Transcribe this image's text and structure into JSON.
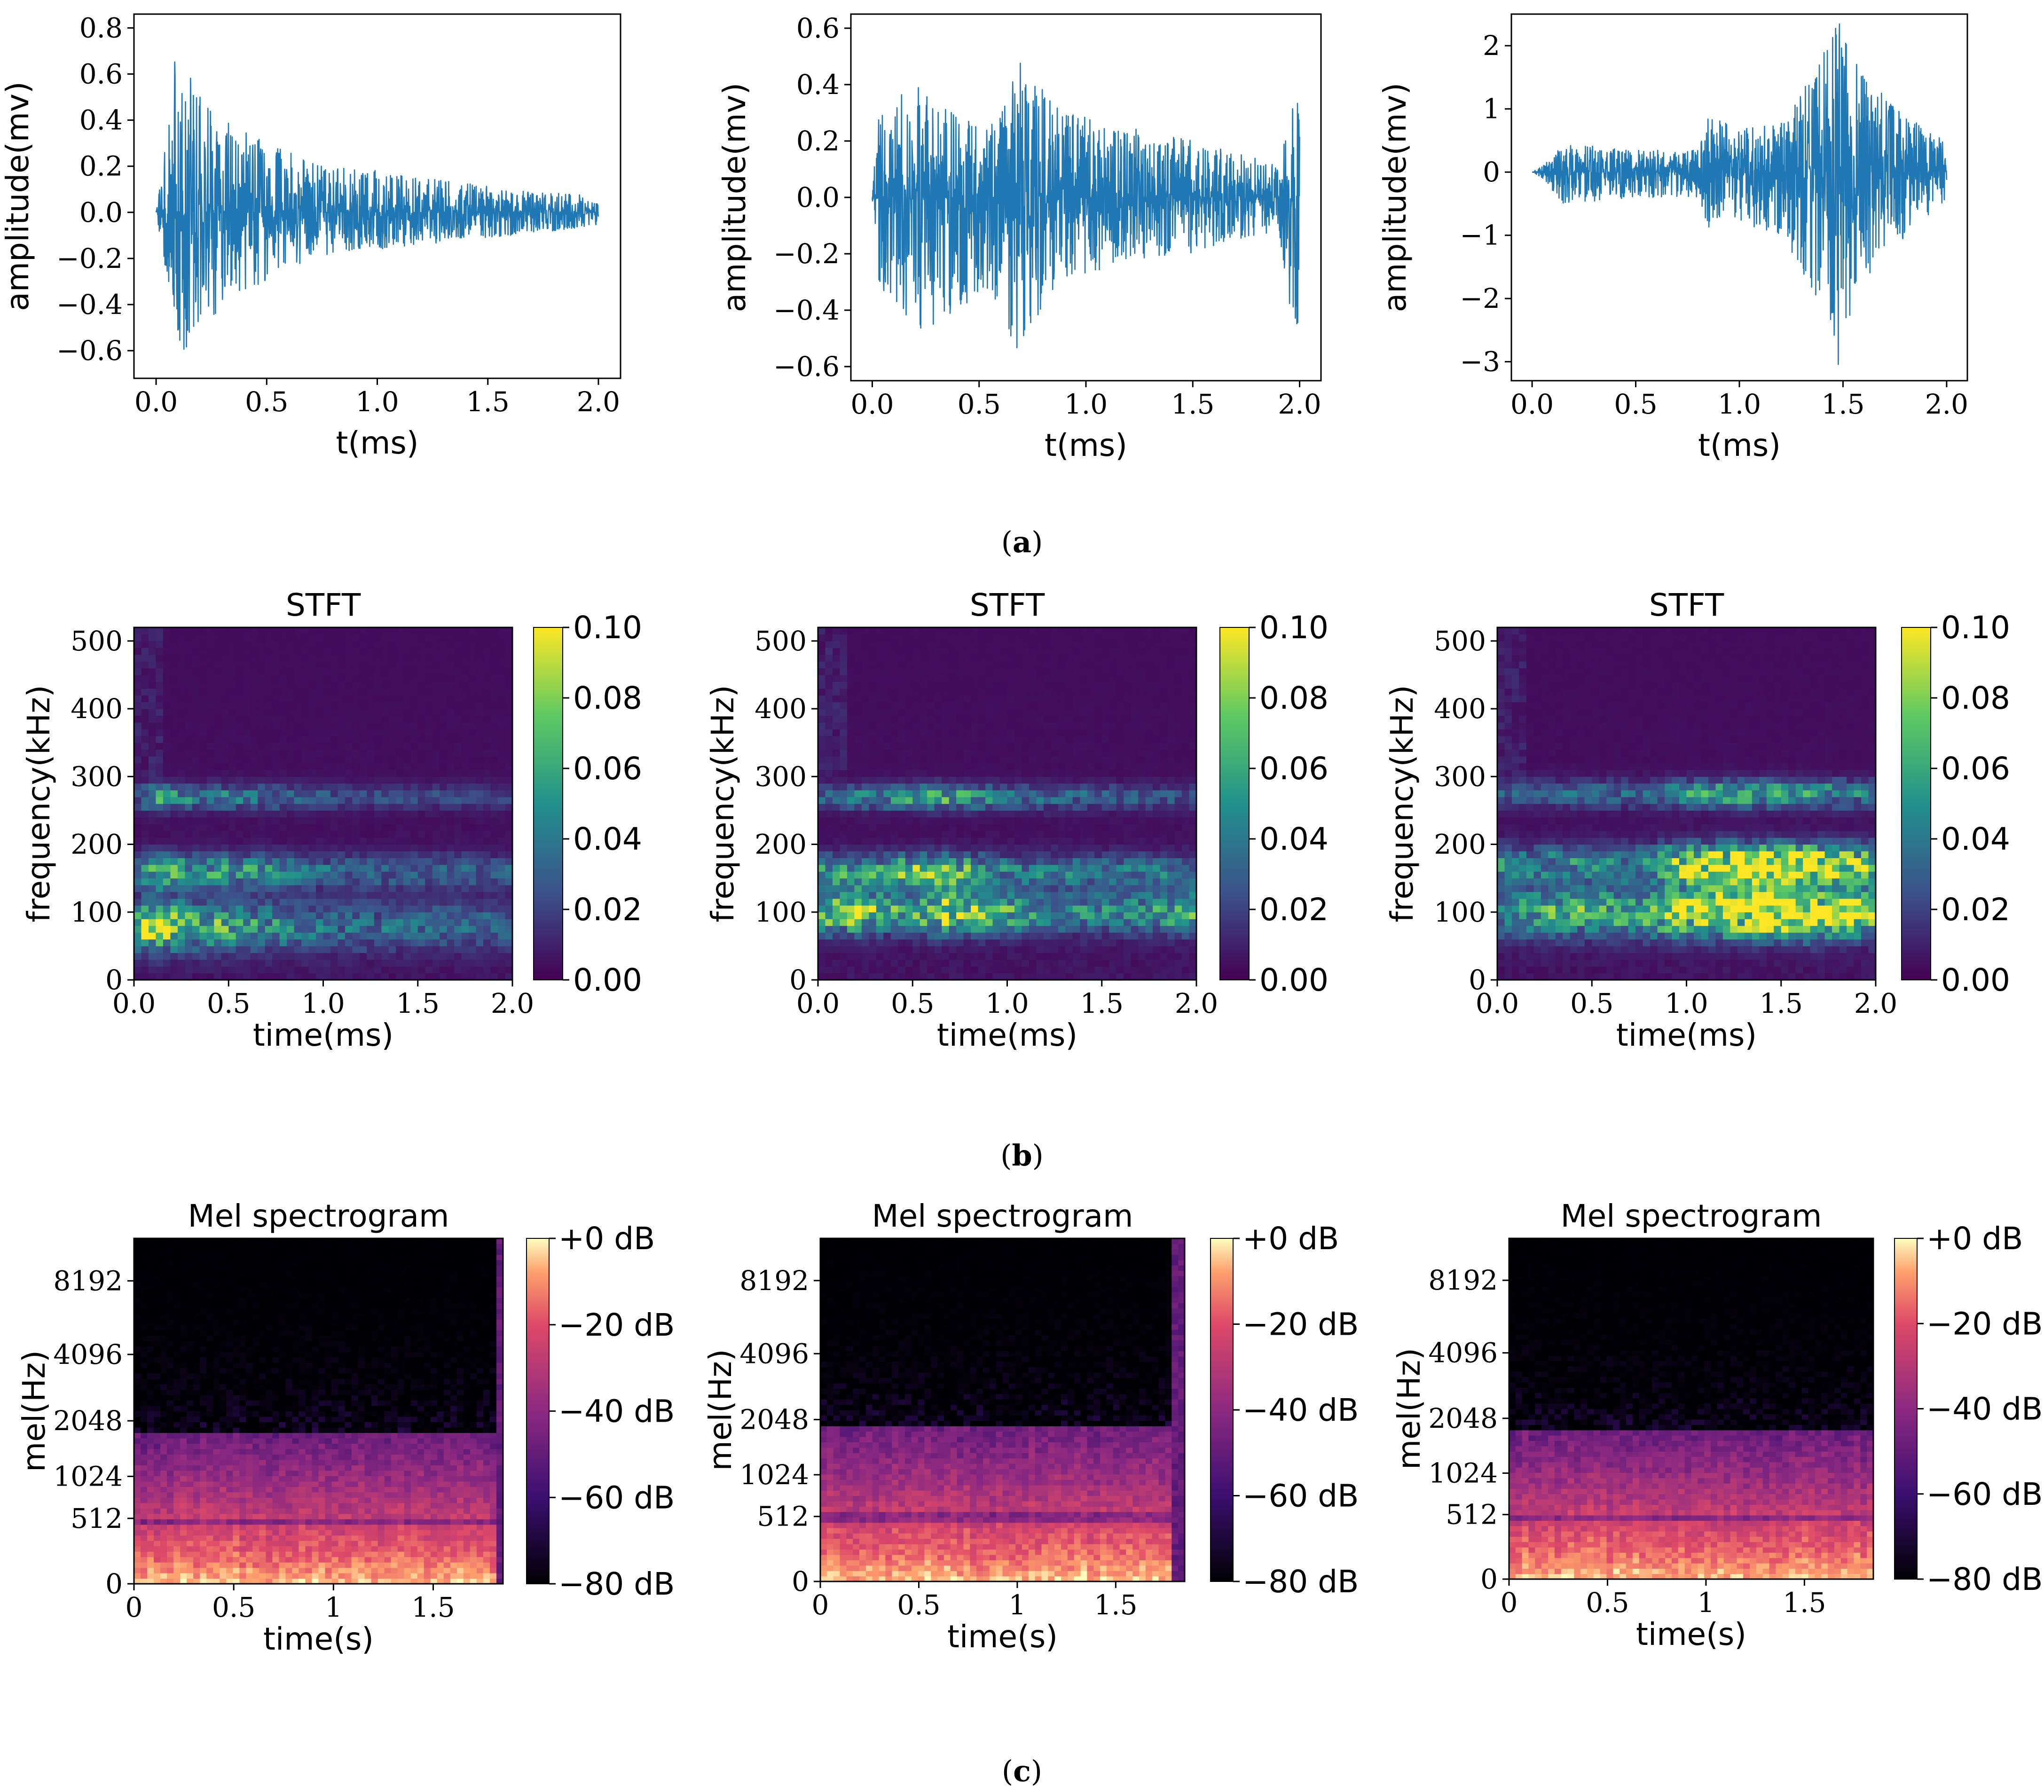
{
  "chart_data": [
    {
      "type": "line",
      "panel": "a1",
      "xlabel": "t(ms)",
      "ylabel": "amplitude(mv)",
      "xlim": [
        0,
        2.0
      ],
      "ylim": [
        -0.72,
        0.86
      ],
      "xticks": [
        0.0,
        0.5,
        1.0,
        1.5,
        2.0
      ],
      "yticks": [
        -0.6,
        -0.4,
        -0.2,
        0.0,
        0.2,
        0.4,
        0.6,
        0.8
      ],
      "color": "#1f77b4",
      "envelope": {
        "t": [
          0.0,
          0.05,
          0.1,
          0.15,
          0.2,
          0.3,
          0.5,
          0.7,
          1.0,
          1.3,
          1.6,
          2.0
        ],
        "pos": [
          0.0,
          0.35,
          0.8,
          0.6,
          0.5,
          0.4,
          0.3,
          0.22,
          0.18,
          0.14,
          0.1,
          0.07
        ],
        "neg": [
          0.0,
          -0.3,
          -0.6,
          -0.68,
          -0.5,
          -0.42,
          -0.3,
          -0.2,
          -0.16,
          -0.13,
          -0.1,
          -0.06
        ]
      }
    },
    {
      "type": "line",
      "panel": "a2",
      "xlabel": "t(ms)",
      "ylabel": "amplitude(mv)",
      "xlim": [
        0,
        2.0
      ],
      "ylim": [
        -0.65,
        0.65
      ],
      "xticks": [
        0.0,
        0.5,
        1.0,
        1.5,
        2.0
      ],
      "yticks": [
        -0.6,
        -0.4,
        -0.2,
        0.0,
        0.2,
        0.4,
        0.6
      ],
      "color": "#1f77b4",
      "envelope": {
        "t": [
          0.0,
          0.02,
          0.2,
          0.5,
          0.6,
          0.65,
          0.75,
          0.9,
          1.2,
          1.5,
          1.9,
          1.97,
          2.0
        ],
        "pos": [
          0.0,
          0.3,
          0.4,
          0.25,
          0.3,
          0.6,
          0.45,
          0.3,
          0.25,
          0.2,
          0.12,
          0.35,
          0.35
        ],
        "neg": [
          0.0,
          -0.3,
          -0.5,
          -0.35,
          -0.4,
          -0.58,
          -0.45,
          -0.3,
          -0.22,
          -0.2,
          -0.12,
          -0.48,
          -0.48
        ]
      }
    },
    {
      "type": "line",
      "panel": "a3",
      "xlabel": "t(ms)",
      "ylabel": "amplitude(mv)",
      "xlim": [
        0,
        2.0
      ],
      "ylim": [
        -3.3,
        2.5
      ],
      "xticks": [
        0.0,
        0.5,
        1.0,
        1.5,
        2.0
      ],
      "yticks": [
        -3,
        -2,
        -1,
        0,
        1,
        2
      ],
      "color": "#1f77b4",
      "envelope": {
        "t": [
          0.0,
          0.05,
          0.15,
          0.5,
          0.8,
          0.85,
          1.0,
          1.2,
          1.35,
          1.48,
          1.55,
          1.7,
          1.85,
          2.0
        ],
        "pos": [
          0.0,
          0.1,
          0.45,
          0.35,
          0.35,
          0.9,
          0.7,
          0.8,
          1.6,
          2.4,
          1.8,
          1.2,
          0.8,
          0.5
        ],
        "neg": [
          0.0,
          -0.1,
          -0.5,
          -0.4,
          -0.4,
          -0.9,
          -0.8,
          -1.0,
          -1.9,
          -3.1,
          -2.0,
          -1.3,
          -0.9,
          -0.5
        ]
      }
    },
    {
      "type": "heatmap",
      "panel": "b1",
      "title": "STFT",
      "xlabel": "time(ms)",
      "ylabel": "frequency(kHz)",
      "xlim": [
        0,
        2.0
      ],
      "ylim": [
        0,
        520
      ],
      "xticks": [
        "0.0",
        "0.5",
        "1.0",
        "1.5",
        "2.0"
      ],
      "yticks": [
        0,
        100,
        200,
        300,
        400,
        500
      ],
      "colormap": "viridis",
      "colorbar": {
        "min": 0.0,
        "max": 0.1,
        "ticks": [
          "0.00",
          "0.02",
          "0.04",
          "0.06",
          "0.08",
          "0.10"
        ]
      },
      "bands": [
        {
          "f": 80,
          "w": 35,
          "amp": [
            [
              0.0,
              0.05
            ],
            [
              0.05,
              0.1
            ],
            [
              0.1,
              0.11
            ],
            [
              0.2,
              0.09
            ],
            [
              0.4,
              0.07
            ],
            [
              0.6,
              0.06
            ],
            [
              1.0,
              0.04
            ],
            [
              1.5,
              0.035
            ],
            [
              2.0,
              0.03
            ]
          ]
        },
        {
          "f": 160,
          "w": 25,
          "amp": [
            [
              0.0,
              0.04
            ],
            [
              0.1,
              0.08
            ],
            [
              0.3,
              0.06
            ],
            [
              0.6,
              0.06
            ],
            [
              1.0,
              0.035
            ],
            [
              2.0,
              0.03
            ]
          ]
        },
        {
          "f": 270,
          "w": 18,
          "amp": [
            [
              0.0,
              0.02
            ],
            [
              0.1,
              0.07
            ],
            [
              0.3,
              0.045
            ],
            [
              0.6,
              0.045
            ],
            [
              1.0,
              0.025
            ],
            [
              2.0,
              0.02
            ]
          ]
        }
      ]
    },
    {
      "type": "heatmap",
      "panel": "b2",
      "title": "STFT",
      "xlabel": "time(ms)",
      "ylabel": "frequency(kHz)",
      "xlim": [
        0,
        2.0
      ],
      "ylim": [
        0,
        520
      ],
      "xticks": [
        "0.0",
        "0.5",
        "1.0",
        "1.5",
        "2.0"
      ],
      "yticks": [
        0,
        100,
        200,
        300,
        400,
        500
      ],
      "colormap": "viridis",
      "colorbar": {
        "min": 0.0,
        "max": 0.1,
        "ticks": [
          "0.00",
          "0.02",
          "0.04",
          "0.06",
          "0.08",
          "0.10"
        ]
      },
      "bands": [
        {
          "f": 100,
          "w": 30,
          "amp": [
            [
              0.0,
              0.08
            ],
            [
              0.2,
              0.1
            ],
            [
              0.5,
              0.06
            ],
            [
              0.65,
              0.11
            ],
            [
              0.9,
              0.08
            ],
            [
              1.2,
              0.05
            ],
            [
              1.6,
              0.05
            ],
            [
              2.0,
              0.07
            ]
          ]
        },
        {
          "f": 160,
          "w": 25,
          "amp": [
            [
              0.0,
              0.06
            ],
            [
              0.3,
              0.06
            ],
            [
              0.65,
              0.09
            ],
            [
              1.0,
              0.045
            ],
            [
              2.0,
              0.04
            ]
          ]
        },
        {
          "f": 270,
          "w": 18,
          "amp": [
            [
              0.0,
              0.03
            ],
            [
              0.65,
              0.07
            ],
            [
              1.0,
              0.04
            ],
            [
              2.0,
              0.025
            ]
          ]
        }
      ]
    },
    {
      "type": "heatmap",
      "panel": "b3",
      "title": "STFT",
      "xlabel": "time(ms)",
      "ylabel": "frequency(kHz)",
      "xlim": [
        0,
        2.0
      ],
      "ylim": [
        0,
        520
      ],
      "xticks": [
        "0.0",
        "0.5",
        "1.0",
        "1.5",
        "2.0"
      ],
      "yticks": [
        0,
        100,
        200,
        300,
        400,
        500
      ],
      "colormap": "viridis",
      "colorbar": {
        "min": 0.0,
        "max": 0.1,
        "ticks": [
          "0.00",
          "0.02",
          "0.04",
          "0.06",
          "0.08",
          "0.10"
        ]
      },
      "bands": [
        {
          "f": 100,
          "w": 35,
          "amp": [
            [
              0.0,
              0.05
            ],
            [
              0.3,
              0.07
            ],
            [
              0.8,
              0.07
            ],
            [
              0.9,
              0.1
            ],
            [
              1.2,
              0.12
            ],
            [
              1.5,
              0.14
            ],
            [
              1.8,
              0.12
            ],
            [
              2.0,
              0.08
            ]
          ]
        },
        {
          "f": 170,
          "w": 28,
          "amp": [
            [
              0.0,
              0.05
            ],
            [
              0.8,
              0.05
            ],
            [
              0.9,
              0.09
            ],
            [
              1.3,
              0.14
            ],
            [
              1.6,
              0.14
            ],
            [
              1.8,
              0.12
            ],
            [
              2.0,
              0.07
            ]
          ]
        },
        {
          "f": 275,
          "w": 20,
          "amp": [
            [
              0.0,
              0.03
            ],
            [
              0.8,
              0.035
            ],
            [
              1.0,
              0.06
            ],
            [
              1.5,
              0.07
            ],
            [
              2.0,
              0.04
            ]
          ]
        }
      ]
    },
    {
      "type": "heatmap",
      "panel": "c1",
      "title": "Mel spectrogram",
      "xlabel": "time(s)",
      "ylabel": "mel(Hz)",
      "xlim": [
        0,
        1.85
      ],
      "ylim": [
        0,
        12000
      ],
      "xticks": [
        "0",
        "0.5",
        "1",
        "1.5"
      ],
      "yticks": [
        "0",
        "512",
        "1024",
        "2048",
        "4096",
        "8192"
      ],
      "colormap": "magma",
      "colorbar": {
        "min": -80,
        "max": 0,
        "ticks": [
          "+0 dB",
          "−20 dB",
          "−40 dB",
          "−60 dB",
          "−80 dB"
        ]
      },
      "cutoff_hz": 1750,
      "cutoff_after_s": 1.82
    },
    {
      "type": "heatmap",
      "panel": "c2",
      "title": "Mel spectrogram",
      "xlabel": "time(s)",
      "ylabel": "mel(Hz)",
      "xlim": [
        0,
        1.85
      ],
      "ylim": [
        0,
        12000
      ],
      "xticks": [
        "0",
        "0.5",
        "1",
        "1.5"
      ],
      "yticks": [
        "0",
        "512",
        "1024",
        "2048",
        "4096",
        "8192"
      ],
      "colormap": "magma",
      "colorbar": {
        "min": -80,
        "max": 0,
        "ticks": [
          "+0 dB",
          "−20 dB",
          "−40 dB",
          "−60 dB",
          "−80 dB"
        ]
      },
      "cutoff_hz": 1900,
      "cutoff_after_s": 1.8
    },
    {
      "type": "heatmap",
      "panel": "c3",
      "title": "Mel spectrogram",
      "xlabel": "time(s)",
      "ylabel": "mel(Hz)",
      "xlim": [
        0,
        1.85
      ],
      "ylim": [
        0,
        12000
      ],
      "xticks": [
        "0",
        "0.5",
        "1",
        "1.5"
      ],
      "yticks": [
        "0",
        "512",
        "1024",
        "2048",
        "4096",
        "8192"
      ],
      "colormap": "magma",
      "colorbar": {
        "min": -80,
        "max": 0,
        "ticks": [
          "+0 dB",
          "−20 dB",
          "−40 dB",
          "−60 dB",
          "−80 dB"
        ]
      },
      "cutoff_hz": 1750,
      "cutoff_after_s": 1.85
    }
  ],
  "captions": [
    {
      "open": "(",
      "letter": "a",
      "close": ")"
    },
    {
      "open": "(",
      "letter": "b",
      "close": ")"
    },
    {
      "open": "(",
      "letter": "c",
      "close": ")"
    }
  ]
}
